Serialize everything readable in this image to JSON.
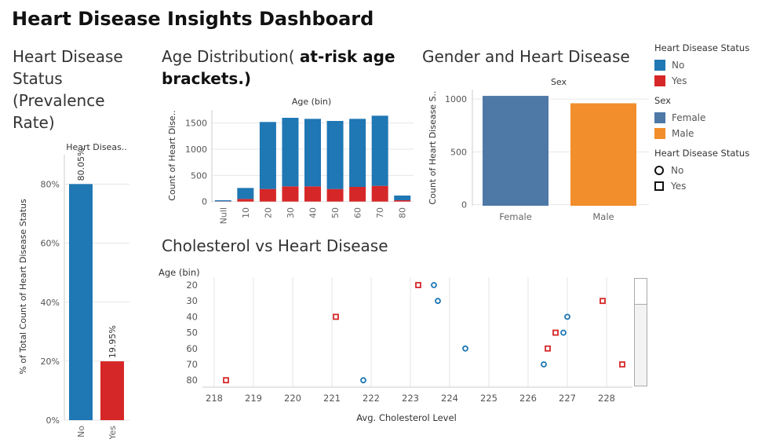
{
  "dashboard": {
    "title": "Heart Disease Insights Dashboard"
  },
  "panels": {
    "status": {
      "title_lines": [
        "Heart Disease",
        "Status",
        "(Prevalence",
        "Rate)"
      ]
    },
    "age": {
      "title_plain": "Age Distribution( ",
      "title_bold_1": "at-risk age",
      "title_bold_2": "brackets.)"
    },
    "gender": {
      "title": "Gender and Heart Disease"
    },
    "chol": {
      "title": "Cholesterol vs Heart Disease"
    }
  },
  "colors": {
    "no": "#1f77b4",
    "yes": "#d62728",
    "female": "#4e79a7",
    "male": "#f28e2b",
    "grid": "#e6e6e6"
  },
  "legend": {
    "status_header": "Heart Disease Status",
    "status_items": [
      {
        "label": "No",
        "color": "#1f77b4"
      },
      {
        "label": "Yes",
        "color": "#d62728"
      }
    ],
    "sex_header": "Sex",
    "sex_items": [
      {
        "label": "Female",
        "color": "#4e79a7"
      },
      {
        "label": "Male",
        "color": "#f28e2b"
      }
    ],
    "shape_header": "Heart Disease Status",
    "shape_items": [
      {
        "label": "No",
        "shape": "circle"
      },
      {
        "label": "Yes",
        "shape": "square"
      }
    ]
  },
  "chart_data": [
    {
      "id": "status",
      "type": "bar",
      "column_header": "Heart Diseas..",
      "ylabel": "% of Total Count of Heart Disease Status",
      "categories": [
        "No",
        "Yes"
      ],
      "values": [
        80.05,
        19.95
      ],
      "data_labels": [
        "80.05%",
        "19.95%"
      ],
      "colors": [
        "#1f77b4",
        "#d62728"
      ],
      "ylim": [
        0,
        0.9
      ],
      "yticks": [
        0,
        0.2,
        0.4,
        0.6,
        0.8
      ],
      "ytick_labels": [
        "0%",
        "20%",
        "40%",
        "60%",
        "80%"
      ]
    },
    {
      "id": "age",
      "type": "bar",
      "stacked": true,
      "column_header": "Age (bin)",
      "ylabel": "Count of Heart Dise..",
      "categories": [
        "Null",
        "10",
        "20",
        "30",
        "40",
        "50",
        "60",
        "70",
        "80"
      ],
      "series": [
        {
          "name": "No",
          "color": "#1f77b4",
          "values": [
            20,
            210,
            1280,
            1310,
            1290,
            1300,
            1300,
            1340,
            90
          ]
        },
        {
          "name": "Yes",
          "color": "#d62728",
          "values": [
            5,
            50,
            240,
            290,
            290,
            240,
            280,
            300,
            25
          ]
        }
      ],
      "ylim": [
        -20,
        1750
      ],
      "yticks": [
        0,
        500,
        1000,
        1500
      ],
      "ytick_labels": [
        "0",
        "500",
        "1000",
        "1500"
      ]
    },
    {
      "id": "gender",
      "type": "bar",
      "column_header": "Sex",
      "ylabel": "Count of Heart Disease S..",
      "categories": [
        "Female",
        "Male"
      ],
      "values": [
        1030,
        960
      ],
      "colors": [
        "#4e79a7",
        "#f28e2b"
      ],
      "ylim": [
        -10,
        1090
      ],
      "yticks": [
        0,
        500,
        1000
      ],
      "ytick_labels": [
        "0",
        "500",
        "1000"
      ]
    },
    {
      "id": "chol",
      "type": "scatter",
      "row_header": "Age (bin)",
      "xlabel": "Avg. Cholesterol Level",
      "y_categories": [
        "20",
        "30",
        "40",
        "50",
        "60",
        "70",
        "80"
      ],
      "xlim": [
        217.7,
        228.7
      ],
      "xticks": [
        218,
        219,
        220,
        221,
        222,
        223,
        224,
        225,
        226,
        227,
        228
      ],
      "series": [
        {
          "name": "No",
          "shape": "circle",
          "color": "#1f77b4",
          "points": [
            {
              "x": 223.6,
              "y": "20"
            },
            {
              "x": 223.7,
              "y": "30"
            },
            {
              "x": 227.0,
              "y": "40"
            },
            {
              "x": 226.9,
              "y": "50"
            },
            {
              "x": 224.4,
              "y": "60"
            },
            {
              "x": 226.4,
              "y": "70"
            },
            {
              "x": 221.8,
              "y": "80"
            }
          ]
        },
        {
          "name": "Yes",
          "shape": "square",
          "color": "#d62728",
          "points": [
            {
              "x": 223.2,
              "y": "20"
            },
            {
              "x": 227.9,
              "y": "30"
            },
            {
              "x": 221.1,
              "y": "40"
            },
            {
              "x": 226.7,
              "y": "50"
            },
            {
              "x": 226.5,
              "y": "60"
            },
            {
              "x": 228.4,
              "y": "70"
            },
            {
              "x": 218.3,
              "y": "80"
            }
          ]
        }
      ]
    }
  ]
}
